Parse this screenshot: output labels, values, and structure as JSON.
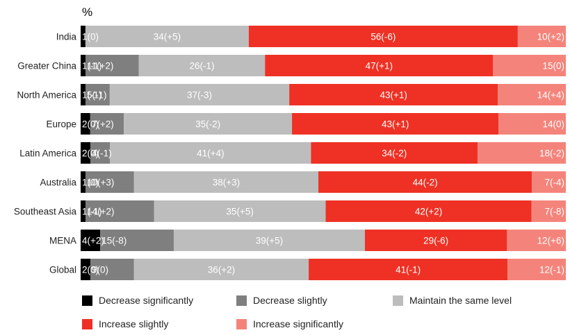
{
  "chart_data": {
    "type": "bar",
    "orientation": "horizontal",
    "stacked": true,
    "unit_label": "%",
    "categories": [
      "India",
      "Greater China",
      "North America",
      "Europe",
      "Latin America",
      "Australia",
      "Southeast Asia",
      "MENA",
      "Global"
    ],
    "series": [
      {
        "name": "Decrease significantly",
        "color": "#000000",
        "values": [
          1,
          1,
          1,
          2,
          2,
          1,
          1,
          4,
          2
        ],
        "labels": [
          "1(0)",
          "1(-1)",
          "1(-1)",
          "2(0)",
          "2(0)",
          "1(0)",
          "1(-1)",
          "4(+2)",
          "2(0)"
        ]
      },
      {
        "name": "Decrease slightly",
        "color": "#7f7f7f",
        "values": [
          0,
          11,
          5,
          7,
          4,
          10,
          14,
          15,
          9
        ],
        "labels": [
          "",
          "11(+2)",
          "5(-1)",
          "7(+2)",
          "4(-1)",
          "10(+3)",
          "14(+2)",
          "15(-8)",
          "9(0)"
        ]
      },
      {
        "name": "Maintain the same level",
        "color": "#bdbdbd",
        "values": [
          34,
          26,
          37,
          35,
          41,
          38,
          35,
          39,
          36
        ],
        "labels": [
          "34(+5)",
          "26(-1)",
          "37(-3)",
          "35(-2)",
          "41(+4)",
          "38(+3)",
          "35(+5)",
          "39(+5)",
          "36(+2)"
        ]
      },
      {
        "name": "Increase slightly",
        "color": "#ee3124",
        "values": [
          56,
          47,
          43,
          43,
          34,
          44,
          42,
          29,
          41
        ],
        "labels": [
          "56(-6)",
          "47(+1)",
          "43(+1)",
          "43(+1)",
          "34(-2)",
          "44(-2)",
          "42(+2)",
          "29(-6)",
          "41(-1)"
        ]
      },
      {
        "name": "Increase significantly",
        "color": "#f4847b",
        "values": [
          10,
          15,
          14,
          14,
          18,
          7,
          7,
          12,
          12
        ],
        "labels": [
          "10(+2)",
          "15(0)",
          "14(+4)",
          "14(0)",
          "18(-2)",
          "7(-4)",
          "7(-8)",
          "12(+6)",
          "12(-1)"
        ]
      }
    ],
    "legend_position": "bottom",
    "grid": false
  }
}
